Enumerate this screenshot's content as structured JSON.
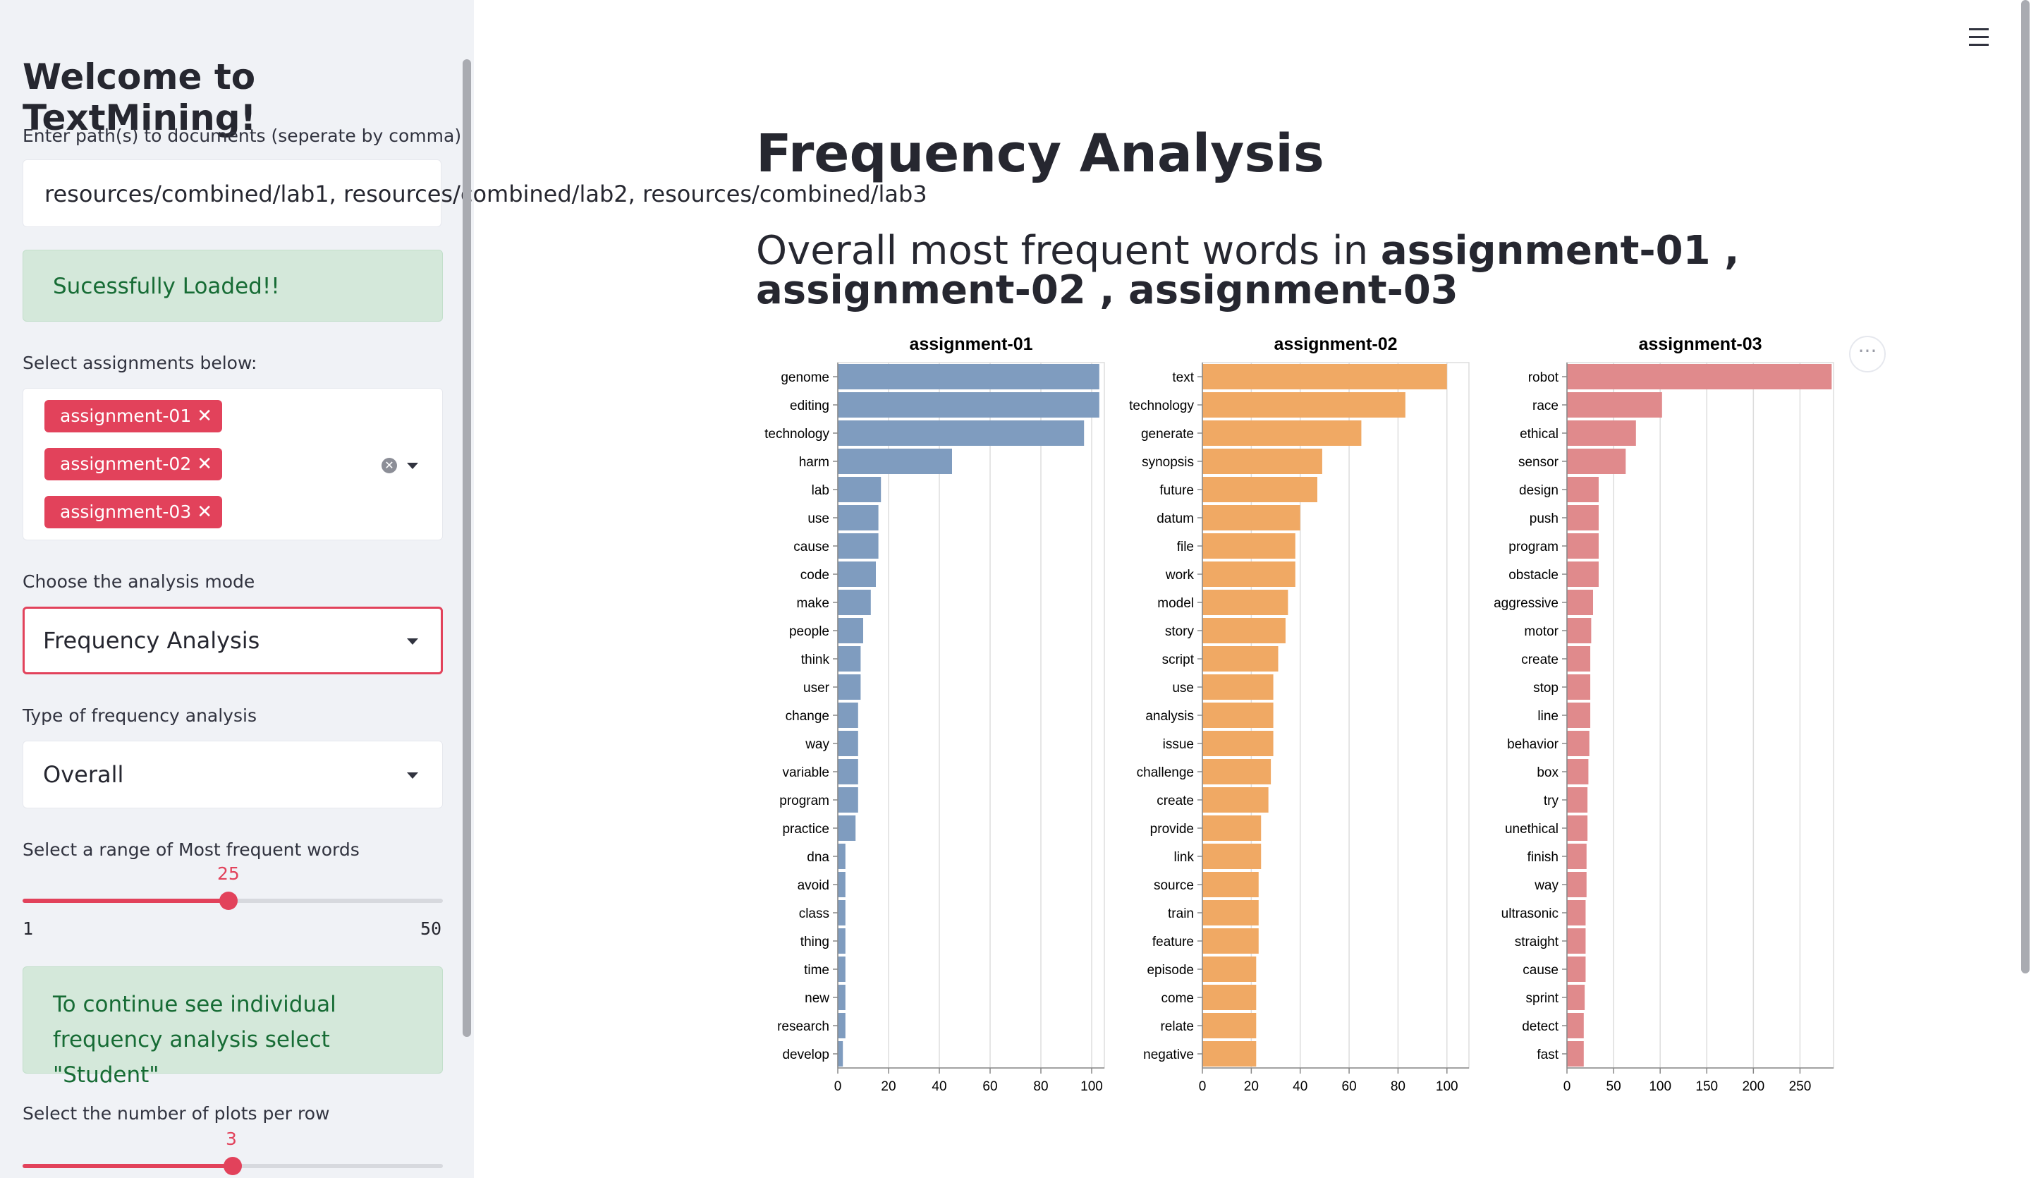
{
  "sidebar": {
    "title": "Welcome to TextMining!",
    "path_label": "Enter path(s) to documents (seperate by comma)",
    "path_value": "resources/combined/lab1, resources/combined/lab2, resources/combined/lab3",
    "loaded_message": "Sucessfully Loaded!!",
    "assignments_label": "Select assignments below:",
    "assignments_selected": [
      "assignment-01",
      "assignment-02",
      "assignment-03"
    ],
    "mode_label": "Choose the analysis mode",
    "mode_value": "Frequency Analysis",
    "freq_type_label": "Type of frequency analysis",
    "freq_type_value": "Overall",
    "range_label": "Select a range of Most frequent words",
    "range_value": "25",
    "range_min": "1",
    "range_max": "50",
    "range_fraction": 0.49,
    "info_line1": "To continue see individual",
    "info_line2": "frequency analysis select \"Student\"",
    "plots_label": "Select the number of plots per row",
    "plots_value": "3",
    "plots_fraction": 0.5
  },
  "main": {
    "title": "Frequency Analysis",
    "subhead_prefix": "Overall most frequent words in ",
    "subhead_a1": "assignment-01",
    "subhead_sep1": " , ",
    "subhead_a2": "assignment-02",
    "subhead_sep2": " , ",
    "subhead_a3": "assignment-03"
  },
  "chart_data": [
    {
      "type": "bar",
      "orientation": "horizontal",
      "title": "assignment-01",
      "color": "#7f9cbf",
      "categories": [
        "genome",
        "editing",
        "technology",
        "harm",
        "lab",
        "use",
        "cause",
        "code",
        "make",
        "people",
        "think",
        "user",
        "change",
        "way",
        "variable",
        "program",
        "practice",
        "dna",
        "avoid",
        "class",
        "thing",
        "time",
        "new",
        "research",
        "develop"
      ],
      "values": [
        103,
        103,
        97,
        45,
        17,
        16,
        16,
        15,
        13,
        10,
        9,
        9,
        8,
        8,
        8,
        8,
        7,
        3,
        3,
        3,
        3,
        3,
        3,
        3,
        2
      ],
      "xlim": [
        0,
        105
      ],
      "xticks": [
        0,
        20,
        40,
        60,
        80,
        100
      ],
      "grid": true
    },
    {
      "type": "bar",
      "orientation": "horizontal",
      "title": "assignment-02",
      "color": "#f0a964",
      "categories": [
        "text",
        "technology",
        "generate",
        "synopsis",
        "future",
        "datum",
        "file",
        "work",
        "model",
        "story",
        "script",
        "use",
        "analysis",
        "issue",
        "challenge",
        "create",
        "provide",
        "link",
        "source",
        "train",
        "feature",
        "episode",
        "come",
        "relate",
        "negative"
      ],
      "values": [
        100,
        83,
        65,
        49,
        47,
        40,
        38,
        38,
        35,
        34,
        31,
        29,
        29,
        29,
        28,
        27,
        24,
        24,
        23,
        23,
        23,
        22,
        22,
        22,
        22
      ],
      "xlim": [
        0,
        109
      ],
      "xticks": [
        0,
        20,
        40,
        60,
        80,
        100
      ],
      "grid": true
    },
    {
      "type": "bar",
      "orientation": "horizontal",
      "title": "assignment-03",
      "color": "#e08a8c",
      "categories": [
        "robot",
        "race",
        "ethical",
        "sensor",
        "design",
        "push",
        "program",
        "obstacle",
        "aggressive",
        "motor",
        "create",
        "stop",
        "line",
        "behavior",
        "box",
        "try",
        "unethical",
        "finish",
        "way",
        "ultrasonic",
        "straight",
        "cause",
        "sprint",
        "detect",
        "fast"
      ],
      "values": [
        284,
        102,
        74,
        63,
        34,
        34,
        34,
        34,
        28,
        26,
        25,
        25,
        25,
        24,
        23,
        22,
        22,
        21,
        21,
        20,
        20,
        20,
        19,
        18,
        18
      ],
      "xlim": [
        0,
        286
      ],
      "xticks": [
        0,
        50,
        100,
        150,
        200,
        250
      ],
      "grid": true
    }
  ]
}
